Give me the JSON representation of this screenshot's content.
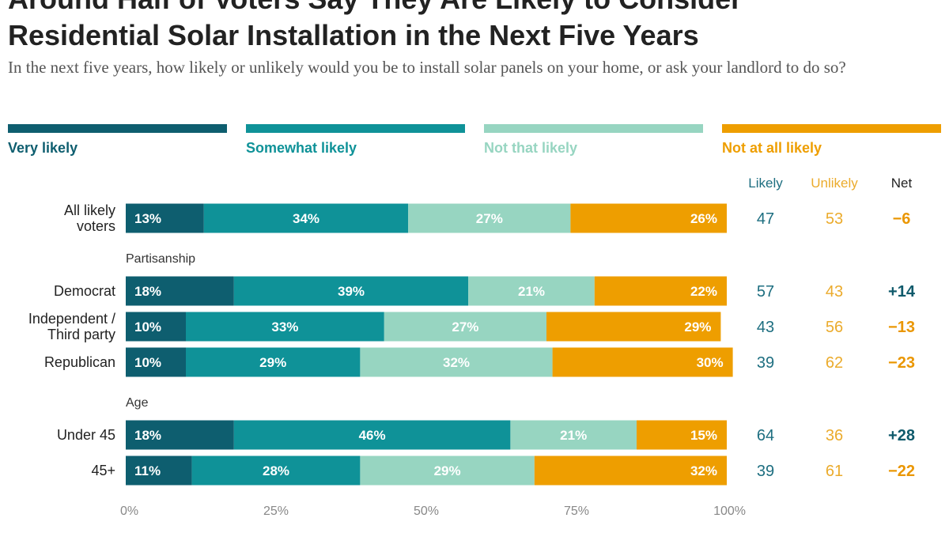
{
  "title_line1": "Around Half of Voters Say They Are Likely to Consider",
  "title_line2": "Residential Solar Installation in the Next Five Years",
  "subtitle": "In the next five years, how likely or unlikely would you be to install solar panels on your home, or ask your landlord to do so?",
  "colors": {
    "very_likely": "#0e5e6f",
    "somewhat_likely": "#0f9298",
    "not_that_likely": "#97d5c1",
    "not_at_all_likely": "#ee9e00",
    "likely_text": "#1d6e80",
    "unlikely_text": "#ebab2c",
    "positive_net": "#0f5a6b",
    "negative_net": "#ea9600",
    "axis_text": "#888888",
    "label_text": "#222222"
  },
  "legend": [
    {
      "label": "Very likely",
      "color": "#0e5e6f"
    },
    {
      "label": "Somewhat likely",
      "color": "#0f9298"
    },
    {
      "label": "Not that likely",
      "color": "#97d5c1"
    },
    {
      "label": "Not at all likely",
      "color": "#ee9e00"
    }
  ],
  "chart_data": {
    "type": "bar",
    "orientation": "horizontal-stacked",
    "title": "Around Half of Voters Say They Are Likely to Consider Residential Solar Installation in the Next Five Years",
    "series_names": [
      "Very likely",
      "Somewhat likely",
      "Not that likely",
      "Not at all likely"
    ],
    "xlim": [
      0,
      100
    ],
    "x_ticks": [
      "0%",
      "25%",
      "50%",
      "75%",
      "100%"
    ],
    "column_headers": {
      "likely": "Likely",
      "unlikely": "Unlikely",
      "net": "Net"
    },
    "groups": [
      {
        "label": "",
        "rows": [
          {
            "label_lines": [
              "All likely",
              "voters"
            ],
            "values": [
              13,
              34,
              27,
              26
            ],
            "value_labels": [
              "13%",
              "34%",
              "27%",
              "26%"
            ],
            "likely": "47",
            "unlikely": "53",
            "net": "−6",
            "net_sign": "negative"
          }
        ]
      },
      {
        "label": "Partisanship",
        "rows": [
          {
            "label_lines": [
              "Democrat"
            ],
            "values": [
              18,
              39,
              21,
              22
            ],
            "value_labels": [
              "18%",
              "39%",
              "21%",
              "22%"
            ],
            "likely": "57",
            "unlikely": "43",
            "net": "+14",
            "net_sign": "positive"
          },
          {
            "label_lines": [
              "Independent /",
              "Third party"
            ],
            "values": [
              10,
              33,
              27,
              29
            ],
            "value_labels": [
              "10%",
              "33%",
              "27%",
              "29%"
            ],
            "likely": "43",
            "unlikely": "56",
            "net": "−13",
            "net_sign": "negative"
          },
          {
            "label_lines": [
              "Republican"
            ],
            "values": [
              10,
              29,
              32,
              30
            ],
            "value_labels": [
              "10%",
              "29%",
              "32%",
              "30%"
            ],
            "likely": "39",
            "unlikely": "62",
            "net": "−23",
            "net_sign": "negative"
          }
        ]
      },
      {
        "label": "Age",
        "rows": [
          {
            "label_lines": [
              "Under 45"
            ],
            "values": [
              18,
              46,
              21,
              15
            ],
            "value_labels": [
              "18%",
              "46%",
              "21%",
              "15%"
            ],
            "likely": "64",
            "unlikely": "36",
            "net": "+28",
            "net_sign": "positive"
          },
          {
            "label_lines": [
              "45+"
            ],
            "values": [
              11,
              28,
              29,
              32
            ],
            "value_labels": [
              "11%",
              "28%",
              "29%",
              "32%"
            ],
            "likely": "39",
            "unlikely": "61",
            "net": "−22",
            "net_sign": "negative"
          }
        ]
      }
    ]
  }
}
